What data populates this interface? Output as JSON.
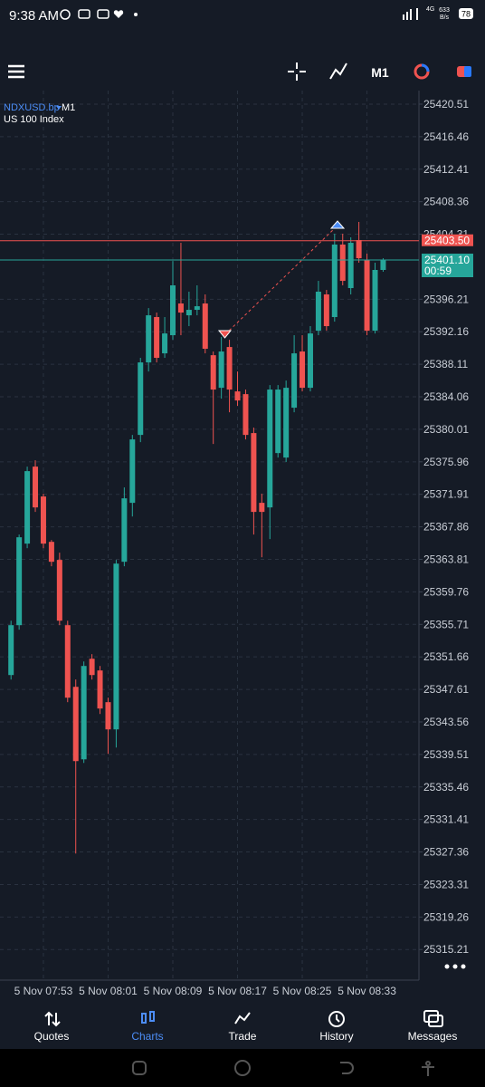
{
  "status_bar": {
    "time": "9:38 AM",
    "network": "4G",
    "speed": "633",
    "speed_unit": "B/s",
    "battery": "78"
  },
  "toolbar": {
    "timeframe": "M1"
  },
  "chart_data": {
    "type": "candlestick",
    "symbol": "NDXUSD.bp",
    "timeframe": "M1",
    "description": "US 100 Index",
    "categories": [
      null,
      null,
      null,
      null,
      "5 Nov 07:53",
      null,
      null,
      null,
      null,
      null,
      null,
      null,
      "5 Nov 08:01",
      null,
      null,
      null,
      null,
      null,
      null,
      null,
      "5 Nov 08:09",
      null,
      null,
      null,
      null,
      null,
      null,
      null,
      "5 Nov 08:17",
      null,
      null,
      null,
      null,
      null,
      null,
      null,
      "5 Nov 08:25",
      null,
      null,
      null,
      null,
      null,
      null,
      null,
      "5 Nov 08:33",
      null,
      null
    ],
    "open": [
      25349.4,
      25355.61,
      25365.77,
      25375.36,
      25371.64,
      25365.99,
      25363.74,
      25355.61,
      25347.93,
      25338.9,
      25351.43,
      25349.97,
      25346.02,
      25342.63,
      25363.51,
      25370.85,
      25379.31,
      25388.34,
      25393.99,
      25389.47,
      25391.73,
      25395.68,
      25394.21,
      25394.89,
      25395.68,
      25389.24,
      25385.18,
      25390.26,
      25384.73,
      25384.39,
      25379.54,
      25370.85,
      25370.28,
      25377.05,
      25376.49,
      25382.7,
      25389.7,
      25385.18,
      25392.29,
      25396.81,
      25393.99,
      25403.02,
      25397.6,
      25403.58,
      25401.1,
      25392.29,
      25399.86
    ],
    "high": [
      25356.17,
      25366.9,
      25375.36,
      25376.15,
      25371.98,
      25366.22,
      25364.64,
      25356.17,
      25348.84,
      25351.09,
      25352.0,
      25350.53,
      25346.58,
      25363.74,
      25372.77,
      25379.31,
      25388.91,
      25395.11,
      25394.55,
      25393.99,
      25400.98,
      25403.24,
      25397.15,
      25397.94,
      25396.81,
      25389.7,
      25391.5,
      25391.16,
      25387.21,
      25384.96,
      25380.22,
      25371.98,
      25385.52,
      25385.52,
      25386.08,
      25391.73,
      25391.73,
      25392.86,
      25398.5,
      25397.37,
      25404.37,
      25404.37,
      25403.92,
      25405.84,
      25401.89,
      25400.76,
      25401.32
    ],
    "low": [
      25348.84,
      25355.05,
      25365.2,
      25369.72,
      25365.2,
      25362.95,
      25355.61,
      25346.02,
      25327.17,
      25338.45,
      25348.84,
      25344.55,
      25339.58,
      25340.37,
      25362.95,
      25369.15,
      25378.41,
      25387.21,
      25388.34,
      25388.91,
      25391.16,
      25391.73,
      25392.86,
      25394.21,
      25389.47,
      25378.18,
      25383.83,
      25382.13,
      25382.92,
      25378.75,
      25366.9,
      25364.07,
      25366.33,
      25376.49,
      25375.93,
      25382.13,
      25384.73,
      25384.73,
      25391.73,
      25392.29,
      25393.42,
      25397.94,
      25396.81,
      25400.76,
      25391.73,
      25391.95,
      25399.63
    ],
    "close": [
      25355.61,
      25366.56,
      25374.8,
      25370.28,
      25365.77,
      25363.51,
      25356.17,
      25346.58,
      25338.68,
      25350.53,
      25349.4,
      25345.23,
      25342.63,
      25363.28,
      25371.41,
      25378.75,
      25388.34,
      25394.21,
      25388.91,
      25391.95,
      25397.94,
      25394.55,
      25394.89,
      25395.34,
      25390.04,
      25384.96,
      25389.7,
      25384.96,
      25383.6,
      25379.31,
      25369.72,
      25369.72,
      25384.96,
      25384.96,
      25385.18,
      25389.47,
      25385.18,
      25391.95,
      25397.15,
      25392.86,
      25403.02,
      25398.5,
      25403.24,
      25401.32,
      25392.29,
      25399.86,
      25401.1
    ],
    "up_color": "#26a69a",
    "down_color": "#ef5350",
    "ylim": [
      25311.4,
      25422.2
    ],
    "yticks": [
      25315.21,
      25319.26,
      25323.31,
      25327.36,
      25331.41,
      25335.46,
      25339.51,
      25343.56,
      25347.61,
      25351.66,
      25355.71,
      25359.76,
      25363.81,
      25367.86,
      25371.91,
      25375.96,
      25380.01,
      25384.06,
      25388.11,
      25392.16,
      25396.21,
      25404.31,
      25408.36,
      25412.41,
      25416.46,
      25420.51
    ],
    "grid": true,
    "price_lines": [
      {
        "value": 25403.5,
        "label": "25403.50",
        "color": "#ef5350"
      },
      {
        "value": 25401.1,
        "label": "25401.10",
        "color": "#26a69a",
        "countdown": "00:59"
      }
    ]
  },
  "nav": [
    "Quotes",
    "Charts",
    "Trade",
    "History",
    "Messages"
  ],
  "active_nav": "Charts"
}
